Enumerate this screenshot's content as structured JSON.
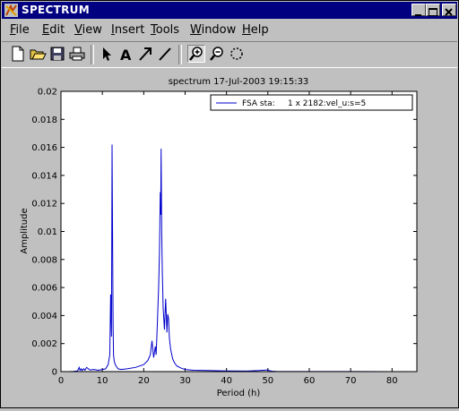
{
  "window": {
    "title": "SPECTRUM"
  },
  "menu": [
    {
      "pre": "",
      "ul": "F",
      "post": "ile"
    },
    {
      "pre": "",
      "ul": "E",
      "post": "dit"
    },
    {
      "pre": "",
      "ul": "V",
      "post": "iew"
    },
    {
      "pre": "",
      "ul": "I",
      "post": "nsert"
    },
    {
      "pre": "",
      "ul": "T",
      "post": "ools"
    },
    {
      "pre": "",
      "ul": "W",
      "post": "indow"
    },
    {
      "pre": "",
      "ul": "H",
      "post": "elp"
    }
  ],
  "toolbar": {
    "icons": [
      "new-file-icon",
      "open-folder-icon",
      "save-icon",
      "print-icon",
      "arrow-pointer-icon",
      "text-a-icon",
      "arrow-icon",
      "line-icon",
      "zoom-in-icon",
      "zoom-out-icon",
      "rotate-icon"
    ]
  },
  "chart_data": {
    "type": "line",
    "title": "spectrum  17-Jul-2003 19:15:33",
    "xlabel": "Period (h)",
    "ylabel": "Amplitude",
    "xlim": [
      0,
      86
    ],
    "ylim": [
      0,
      0.02
    ],
    "xticks": [
      "0",
      "10",
      "20",
      "30",
      "40",
      "50",
      "60",
      "70",
      "80"
    ],
    "xtick_values": [
      0,
      10,
      20,
      30,
      40,
      50,
      60,
      70,
      80
    ],
    "yticks": [
      "0",
      "0.002",
      "0.004",
      "0.006",
      "0.008",
      "0.01",
      "0.012",
      "0.014",
      "0.016",
      "0.018",
      "0.02"
    ],
    "ytick_values": [
      0,
      0.002,
      0.004,
      0.006,
      0.008,
      0.01,
      0.012,
      0.014,
      0.016,
      0.018,
      0.02
    ],
    "grid": false,
    "legend_position": "top-right",
    "series": [
      {
        "name": "FSA sta:     1 x 2182:vel_u:s=5",
        "color": "#0000cc",
        "x": [
          2,
          3,
          4,
          4.4,
          4.6,
          4.9,
          5.1,
          5.5,
          5.8,
          6.2,
          7,
          8,
          9,
          10,
          10.8,
          11.4,
          11.8,
          12.0,
          12.2,
          12.35,
          12.5,
          12.6,
          12.7,
          12.85,
          13.0,
          13.3,
          13.8,
          14.5,
          16,
          18,
          20,
          21,
          21.6,
          22.0,
          22.2,
          22.4,
          22.6,
          22.8,
          23.0,
          23.3,
          23.6,
          23.8,
          24.0,
          24.1,
          24.2,
          24.35,
          24.5,
          24.7,
          25.0,
          25.3,
          25.6,
          25.8,
          26.0,
          26.2,
          26.5,
          27,
          27.5,
          28,
          29,
          30,
          32,
          35,
          40,
          45,
          48,
          50,
          50.5,
          51,
          52,
          55,
          60,
          70,
          80,
          86
        ],
        "y": [
          0,
          2e-05,
          5e-05,
          0.0003,
          0.0001,
          0.0002,
          8e-05,
          0.0002,
          0.0001,
          0.0003,
          0.00012,
          0.00015,
          0.0001,
          0.00015,
          0.0002,
          0.0005,
          0.0012,
          0.0055,
          0.0025,
          0.0162,
          0.0085,
          0.0032,
          0.0012,
          0.0008,
          0.0006,
          0.0004,
          0.0002,
          0.00015,
          0.0002,
          0.0003,
          0.0005,
          0.0008,
          0.0012,
          0.0022,
          0.0016,
          0.001,
          0.0014,
          0.0018,
          0.0012,
          0.0035,
          0.006,
          0.0085,
          0.0128,
          0.0112,
          0.0159,
          0.0098,
          0.007,
          0.0045,
          0.003,
          0.0052,
          0.0028,
          0.0041,
          0.0038,
          0.0024,
          0.0016,
          0.0009,
          0.0006,
          0.0004,
          0.00025,
          0.00015,
          0.0001,
          8e-05,
          5e-05,
          4e-05,
          8e-05,
          0.00012,
          6e-05,
          3e-05,
          2e-05,
          1e-05,
          1e-05,
          1e-05,
          0,
          0
        ]
      }
    ]
  }
}
